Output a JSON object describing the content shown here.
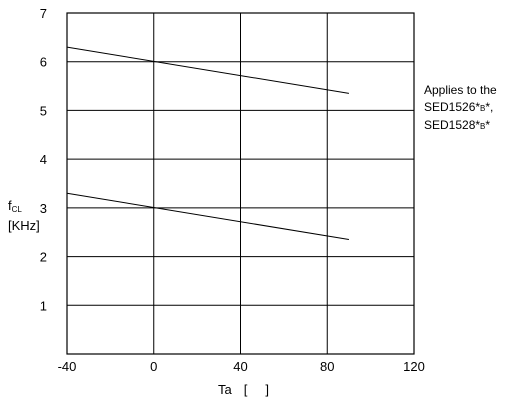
{
  "chart_data": {
    "type": "line",
    "xlabel": "Ta",
    "xunit_open": "[",
    "xunit_close": "]",
    "ylabel_main": "f",
    "ylabel_sub": "CL",
    "ylabel_unit": "[KHz]",
    "xlim": [
      -40,
      120
    ],
    "ylim": [
      0,
      7
    ],
    "xticks": [
      -40,
      0,
      40,
      80,
      120
    ],
    "yticks": [
      1,
      2,
      3,
      4,
      5,
      6,
      7
    ],
    "grid": true,
    "series": [
      {
        "x": [
          -40,
          90
        ],
        "y": [
          6.3,
          5.35
        ]
      },
      {
        "x": [
          -40,
          90
        ],
        "y": [
          3.3,
          2.35
        ]
      }
    ],
    "annotation": {
      "line1": "Applies to the",
      "line2_main": "SED1526*",
      "line2_small": "B",
      "line2_end": "*,",
      "line3_main": "SED1528*",
      "line3_small": "B",
      "line3_end": "*"
    }
  }
}
